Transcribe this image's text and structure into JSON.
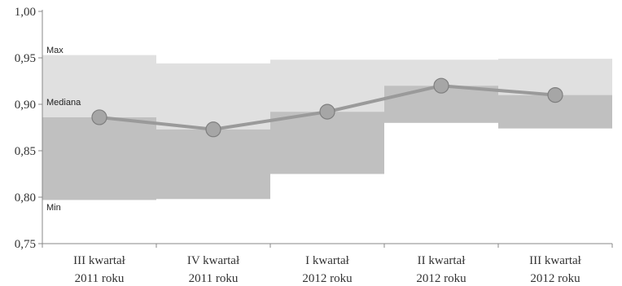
{
  "chart_data": {
    "type": "line",
    "categories": [
      [
        "III kwartał",
        "2011 roku"
      ],
      [
        "IV kwartał",
        "2011 roku"
      ],
      [
        "I kwartał",
        "2012 roku"
      ],
      [
        "II kwartał",
        "2012 roku"
      ],
      [
        "III kwartał",
        "2012 roku"
      ]
    ],
    "ylim": [
      0.75,
      1.0
    ],
    "yticks": [
      "0,75",
      "0,80",
      "0,85",
      "0,90",
      "0,95",
      "1,00"
    ],
    "ytick_values": [
      0.75,
      0.8,
      0.85,
      0.9,
      0.95,
      1.0
    ],
    "series": [
      {
        "name": "Max",
        "values": [
          0.953,
          0.944,
          0.948,
          0.948,
          0.949
        ]
      },
      {
        "name": "Mediana",
        "values": [
          0.886,
          0.873,
          0.892,
          0.92,
          0.91
        ]
      },
      {
        "name": "Min",
        "values": [
          0.797,
          0.798,
          0.825,
          0.88,
          0.874
        ]
      }
    ],
    "band_labels": {
      "max": "Max",
      "median": "Mediana",
      "min": "Min"
    },
    "colors": {
      "band_upper": "#e0e0e0",
      "band_lower": "#c0c0c0",
      "line": "#9a9a9a",
      "marker_fill": "#a6a6a6",
      "marker_stroke": "#7f7f7f",
      "axis": "#888888"
    },
    "grid": false
  }
}
